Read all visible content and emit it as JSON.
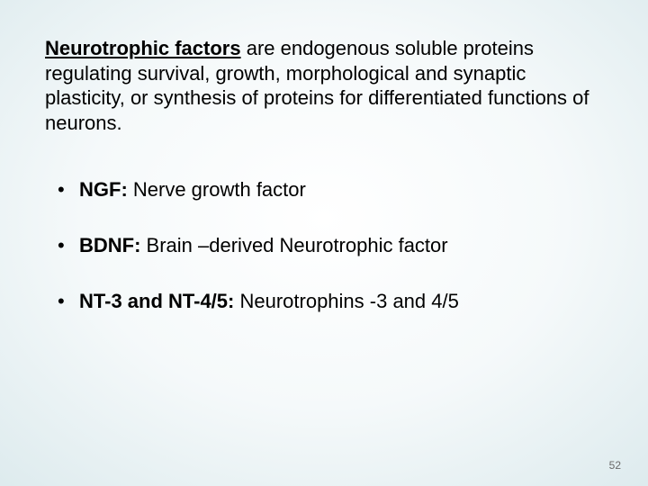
{
  "colors": {
    "text": "#000000",
    "page_number": "#6a6a6a",
    "bg_center": "#ffffff",
    "bg_mid": "#dceaed",
    "bg_edge": "#9fbfc5"
  },
  "typography": {
    "body_fontsize_pt": 16,
    "page_number_fontsize_pt": 9,
    "font_family": "Arial"
  },
  "intro": {
    "lead": "Neurotrophic  factors",
    "rest": " are endogenous soluble proteins regulating survival, growth, morphological and synaptic plasticity, or synthesis of proteins for differentiated functions of neurons."
  },
  "bullets": [
    {
      "label": "NGF:",
      "text": "  Nerve growth  factor"
    },
    {
      "label": "BDNF:",
      "text": " Brain –derived Neurotrophic factor"
    },
    {
      "label": "NT-3 and NT-4/5:",
      "text": " Neurotrophins -3 and 4/5"
    }
  ],
  "page_number": "52"
}
